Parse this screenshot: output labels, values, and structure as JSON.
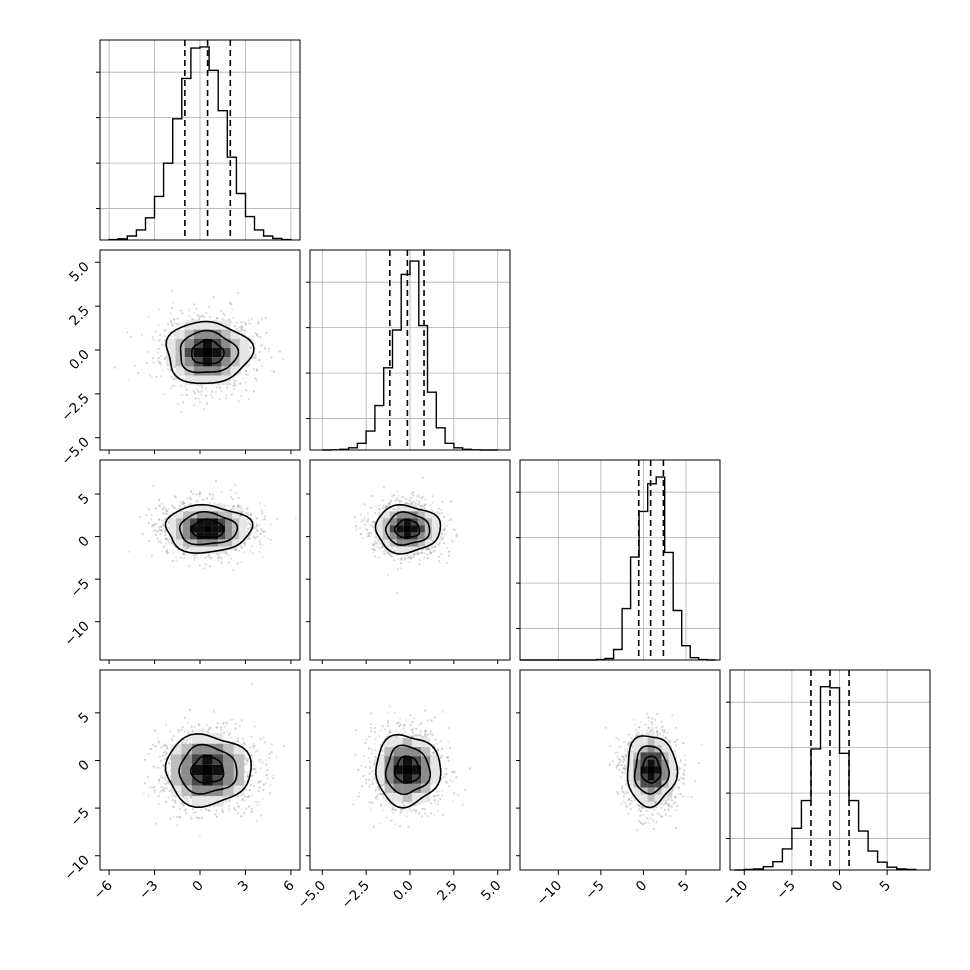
{
  "chart_data": {
    "type": "corner",
    "grid": true,
    "density_colormap": [
      "#ffffff",
      "#e6e6e6",
      "#bdbdbd",
      "#8c8c8c",
      "#4a4a4a",
      "#101010",
      "#000000"
    ],
    "params": [
      {
        "range": [
          -6.6,
          6.6
        ],
        "ticks": [
          -6,
          -3,
          0,
          3,
          6
        ],
        "tick_labels": [
          "−6",
          "−3",
          "0",
          "3",
          "6"
        ],
        "mean": 0.5,
        "std": 1.45,
        "quantiles": [
          -1.0,
          0.5,
          2.0
        ],
        "hist_bins": [
          -6.0,
          -5.4,
          -4.8,
          -4.2,
          -3.6,
          -3.0,
          -2.4,
          -1.8,
          -1.2,
          -0.6,
          0.0,
          0.6,
          1.2,
          1.8,
          2.4,
          3.0,
          3.6,
          4.2,
          4.8,
          5.4,
          6.0
        ],
        "hist_counts": [
          1,
          3,
          10,
          25,
          55,
          108,
          190,
          300,
          400,
          475,
          478,
          420,
          320,
          205,
          115,
          58,
          25,
          10,
          4,
          1
        ],
        "hist_ylim": [
          0,
          495
        ]
      },
      {
        "range": [
          -5.7,
          5.7
        ],
        "ticks": [
          -5.0,
          -2.5,
          0.0,
          2.5,
          5.0
        ],
        "tick_labels": [
          "−5.0",
          "−2.5",
          "0.0",
          "2.5",
          "5.0"
        ],
        "mean": -0.15,
        "std": 0.95,
        "quantiles": [
          -1.15,
          -0.15,
          0.8
        ],
        "hist_bins": [
          -5.0,
          -4.5,
          -4.0,
          -3.5,
          -3.0,
          -2.5,
          -2.0,
          -1.5,
          -1.0,
          -0.5,
          0.0,
          0.5,
          1.0,
          1.5,
          2.0,
          2.5,
          3.0,
          3.5,
          4.0,
          4.5,
          5.0
        ],
        "hist_counts": [
          0,
          1,
          3,
          10,
          30,
          85,
          200,
          370,
          540,
          790,
          850,
          560,
          260,
          100,
          30,
          10,
          3,
          1,
          0,
          0
        ],
        "hist_ylim": [
          0,
          900
        ]
      },
      {
        "range": [
          -14.5,
          9.0
        ],
        "ticks": [
          -10,
          -5,
          0,
          5
        ],
        "tick_labels": [
          "−10",
          "−5",
          "0",
          "5"
        ],
        "mean": 0.9,
        "std": 1.5,
        "quantiles": [
          -0.55,
          0.85,
          2.35
        ],
        "hist_bins": [
          -14.5,
          -13.5,
          -12.5,
          -11.5,
          -10.5,
          -9.5,
          -8.5,
          -7.5,
          -6.5,
          -5.5,
          -4.5,
          -3.5,
          -2.5,
          -1.5,
          -0.5,
          0.5,
          1.5,
          2.5,
          3.5,
          4.5,
          5.5,
          6.5,
          7.5,
          8.5
        ],
        "hist_counts": [
          0,
          0,
          0,
          0,
          0,
          0,
          0,
          0,
          0,
          2,
          8,
          55,
          270,
          540,
          780,
          925,
          960,
          565,
          260,
          75,
          12,
          2,
          0
        ],
        "hist_ylim": [
          0,
          1050
        ]
      },
      {
        "range": [
          -11.5,
          9.5
        ],
        "ticks": [
          -10,
          -5,
          0,
          5
        ],
        "tick_labels": [
          "−10",
          "−5",
          "0",
          "5"
        ],
        "mean": -1.0,
        "std": 2.0,
        "quantiles": [
          -3.0,
          -1.0,
          1.0
        ],
        "hist_bins": [
          -11.0,
          -10.0,
          -9.0,
          -8.0,
          -7.0,
          -6.0,
          -5.0,
          -4.0,
          -3.0,
          -2.0,
          -1.0,
          0.0,
          1.0,
          2.0,
          3.0,
          4.0,
          5.0,
          6.0,
          7.0,
          8.0
        ],
        "hist_counts": [
          0,
          1,
          2,
          6,
          15,
          38,
          75,
          125,
          218,
          330,
          328,
          210,
          125,
          70,
          34,
          14,
          5,
          2,
          1
        ],
        "hist_ylim": [
          0,
          360
        ]
      }
    ]
  }
}
